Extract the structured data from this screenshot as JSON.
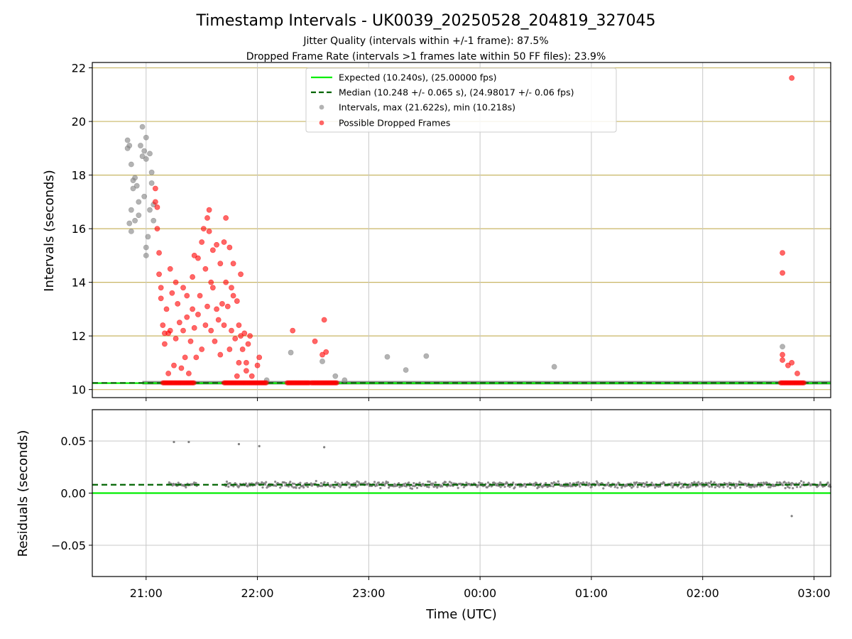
{
  "chart_data": [
    {
      "type": "scatter",
      "title": "Timestamp Intervals - UK0039_20250528_204819_327045",
      "subtitle_lines": [
        "Jitter Quality (intervals within +/-1 frame): 87.5%",
        "Dropped Frame Rate (intervals >1 frames late within 50 FF files): 23.9%"
      ],
      "xlabel": "",
      "ylabel": "Intervals (seconds)",
      "xlim": [
        "20:31",
        "03:09"
      ],
      "ylim": [
        9.7,
        22.2
      ],
      "x_ticks": [
        "21:00",
        "22:00",
        "23:00",
        "00:00",
        "01:00",
        "02:00",
        "03:00"
      ],
      "y_ticks": [
        10,
        12,
        14,
        16,
        18,
        20,
        22
      ],
      "grid": true,
      "legend_position": "upper center",
      "legend": [
        "Expected (10.240s), (25.00000 fps)",
        "Median (10.248 +/- 0.065 s), (24.98017 +/- 0.06 fps)",
        "Intervals, max (21.622s), min (10.218s)",
        "Possible Dropped Frames"
      ],
      "reference_lines": {
        "expected": 10.24,
        "median": 10.248
      },
      "series": [
        {
          "name": "Intervals, max (21.622s), min (10.218s)",
          "color": "#808080",
          "points": [
            [
              "20:50",
              19.0
            ],
            [
              "20:50",
              19.3
            ],
            [
              "20:51",
              19.1
            ],
            [
              "20:52",
              18.4
            ],
            [
              "20:53",
              17.8
            ],
            [
              "20:53",
              17.5
            ],
            [
              "20:54",
              17.9
            ],
            [
              "20:55",
              17.6
            ],
            [
              "20:56",
              17.0
            ],
            [
              "20:57",
              19.1
            ],
            [
              "20:58",
              18.7
            ],
            [
              "20:58",
              19.8
            ],
            [
              "20:59",
              18.9
            ],
            [
              "21:00",
              19.4
            ],
            [
              "21:00",
              18.6
            ],
            [
              "20:52",
              16.7
            ],
            [
              "20:52",
              15.9
            ],
            [
              "20:54",
              16.3
            ],
            [
              "20:56",
              16.5
            ],
            [
              "20:59",
              17.2
            ],
            [
              "21:00",
              15.3
            ],
            [
              "21:00",
              15.0
            ],
            [
              "21:01",
              15.7
            ],
            [
              "21:02",
              16.7
            ],
            [
              "21:02",
              18.8
            ],
            [
              "21:03",
              18.1
            ],
            [
              "21:03",
              17.7
            ],
            [
              "21:04",
              16.3
            ],
            [
              "21:04",
              16.9
            ],
            [
              "20:51",
              16.2
            ],
            [
              "22:05",
              10.35
            ],
            [
              "22:18",
              11.38
            ],
            [
              "22:35",
              11.05
            ],
            [
              "22:42",
              10.5
            ],
            [
              "22:47",
              10.35
            ],
            [
              "23:10",
              11.22
            ],
            [
              "23:20",
              10.73
            ],
            [
              "23:31",
              11.25
            ],
            [
              "00:40",
              10.85
            ],
            [
              "02:43",
              11.6
            ]
          ]
        },
        {
          "name": "Possible Dropped Frames",
          "color": "#ff0000",
          "points": [
            [
              "21:05",
              17.5
            ],
            [
              "21:05",
              17.0
            ],
            [
              "21:06",
              16.8
            ],
            [
              "21:06",
              16.0
            ],
            [
              "21:07",
              15.1
            ],
            [
              "21:07",
              14.3
            ],
            [
              "21:08",
              13.4
            ],
            [
              "21:08",
              13.8
            ],
            [
              "21:09",
              12.4
            ],
            [
              "21:10",
              12.1
            ],
            [
              "21:10",
              11.7
            ],
            [
              "21:11",
              13.0
            ],
            [
              "21:12",
              12.1
            ],
            [
              "21:12",
              10.6
            ],
            [
              "21:13",
              14.5
            ],
            [
              "21:13",
              12.2
            ],
            [
              "21:14",
              13.6
            ],
            [
              "21:15",
              10.9
            ],
            [
              "21:16",
              14.0
            ],
            [
              "21:16",
              11.9
            ],
            [
              "21:17",
              13.2
            ],
            [
              "21:18",
              12.5
            ],
            [
              "21:19",
              10.8
            ],
            [
              "21:20",
              13.8
            ],
            [
              "21:20",
              12.2
            ],
            [
              "21:21",
              11.2
            ],
            [
              "21:22",
              13.5
            ],
            [
              "21:22",
              12.7
            ],
            [
              "21:23",
              10.6
            ],
            [
              "21:24",
              11.8
            ],
            [
              "21:25",
              14.2
            ],
            [
              "21:25",
              13.0
            ],
            [
              "21:26",
              12.3
            ],
            [
              "21:26",
              15.0
            ],
            [
              "21:27",
              11.2
            ],
            [
              "21:28",
              14.9
            ],
            [
              "21:28",
              12.8
            ],
            [
              "21:29",
              13.5
            ],
            [
              "21:30",
              15.5
            ],
            [
              "21:30",
              11.5
            ],
            [
              "21:31",
              16.0
            ],
            [
              "21:32",
              14.5
            ],
            [
              "21:32",
              12.4
            ],
            [
              "21:33",
              16.4
            ],
            [
              "21:33",
              13.1
            ],
            [
              "21:34",
              16.7
            ],
            [
              "21:34",
              15.9
            ],
            [
              "21:35",
              14.0
            ],
            [
              "21:35",
              12.2
            ],
            [
              "21:36",
              15.2
            ],
            [
              "21:36",
              13.8
            ],
            [
              "21:37",
              11.8
            ],
            [
              "21:38",
              15.4
            ],
            [
              "21:38",
              13.0
            ],
            [
              "21:39",
              12.6
            ],
            [
              "21:40",
              14.7
            ],
            [
              "21:40",
              11.3
            ],
            [
              "21:41",
              13.2
            ],
            [
              "21:42",
              15.5
            ],
            [
              "21:42",
              12.4
            ],
            [
              "21:43",
              16.4
            ],
            [
              "21:43",
              14.0
            ],
            [
              "21:44",
              13.1
            ],
            [
              "21:45",
              15.3
            ],
            [
              "21:45",
              11.5
            ],
            [
              "21:46",
              13.8
            ],
            [
              "21:46",
              12.2
            ],
            [
              "21:47",
              14.7
            ],
            [
              "21:47",
              13.5
            ],
            [
              "21:48",
              11.9
            ],
            [
              "21:49",
              13.3
            ],
            [
              "21:49",
              10.5
            ],
            [
              "21:50",
              12.4
            ],
            [
              "21:50",
              11.0
            ],
            [
              "21:51",
              14.3
            ],
            [
              "21:51",
              12.0
            ],
            [
              "21:52",
              11.5
            ],
            [
              "21:53",
              12.1
            ],
            [
              "21:54",
              11.0
            ],
            [
              "21:54",
              10.7
            ],
            [
              "21:55",
              11.7
            ],
            [
              "21:56",
              12.0
            ],
            [
              "21:57",
              10.5
            ],
            [
              "22:00",
              10.9
            ],
            [
              "22:01",
              11.2
            ],
            [
              "22:19",
              12.2
            ],
            [
              "22:31",
              11.8
            ],
            [
              "22:35",
              11.3
            ],
            [
              "22:36",
              12.6
            ],
            [
              "22:37",
              11.4
            ],
            [
              "02:43",
              15.1
            ],
            [
              "02:43",
              14.35
            ],
            [
              "02:43",
              11.3
            ],
            [
              "02:43",
              11.1
            ],
            [
              "02:46",
              10.9
            ],
            [
              "02:48",
              11.0
            ],
            [
              "02:51",
              10.6
            ],
            [
              "02:48",
              21.62
            ]
          ],
          "baseline_bands": [
            [
              "21:09",
              "21:26",
              10.25
            ],
            [
              "21:42",
              "22:05",
              10.25
            ],
            [
              "22:16",
              "22:28",
              10.25
            ],
            [
              "22:29",
              "22:43",
              10.25
            ],
            [
              "02:42",
              "02:55",
              10.25
            ]
          ]
        }
      ]
    },
    {
      "type": "scatter",
      "xlabel": "Time (UTC)",
      "ylabel": "Residuals (seconds)",
      "xlim": [
        "20:31",
        "03:09"
      ],
      "ylim": [
        -0.08,
        0.08
      ],
      "x_ticks": [
        "21:00",
        "22:00",
        "23:00",
        "00:00",
        "01:00",
        "02:00",
        "03:00"
      ],
      "y_ticks": [
        0.05,
        0.0,
        -0.05
      ],
      "y_tick_labels": [
        "0.05",
        "0.00",
        "−0.05"
      ],
      "grid": true,
      "reference_lines": {
        "expected": 0.0,
        "median": 0.008
      },
      "series": [
        {
          "name": "Residuals",
          "color": "#808080",
          "band": {
            "start": "21:12",
            "end": "03:09",
            "center": 0.008,
            "spread": 0.004
          },
          "outliers": [
            [
              "21:15",
              0.049
            ],
            [
              "21:23",
              0.049
            ],
            [
              "21:50",
              0.047
            ],
            [
              "22:01",
              0.045
            ],
            [
              "22:36",
              0.044
            ],
            [
              "02:48",
              -0.022
            ]
          ]
        }
      ]
    }
  ]
}
